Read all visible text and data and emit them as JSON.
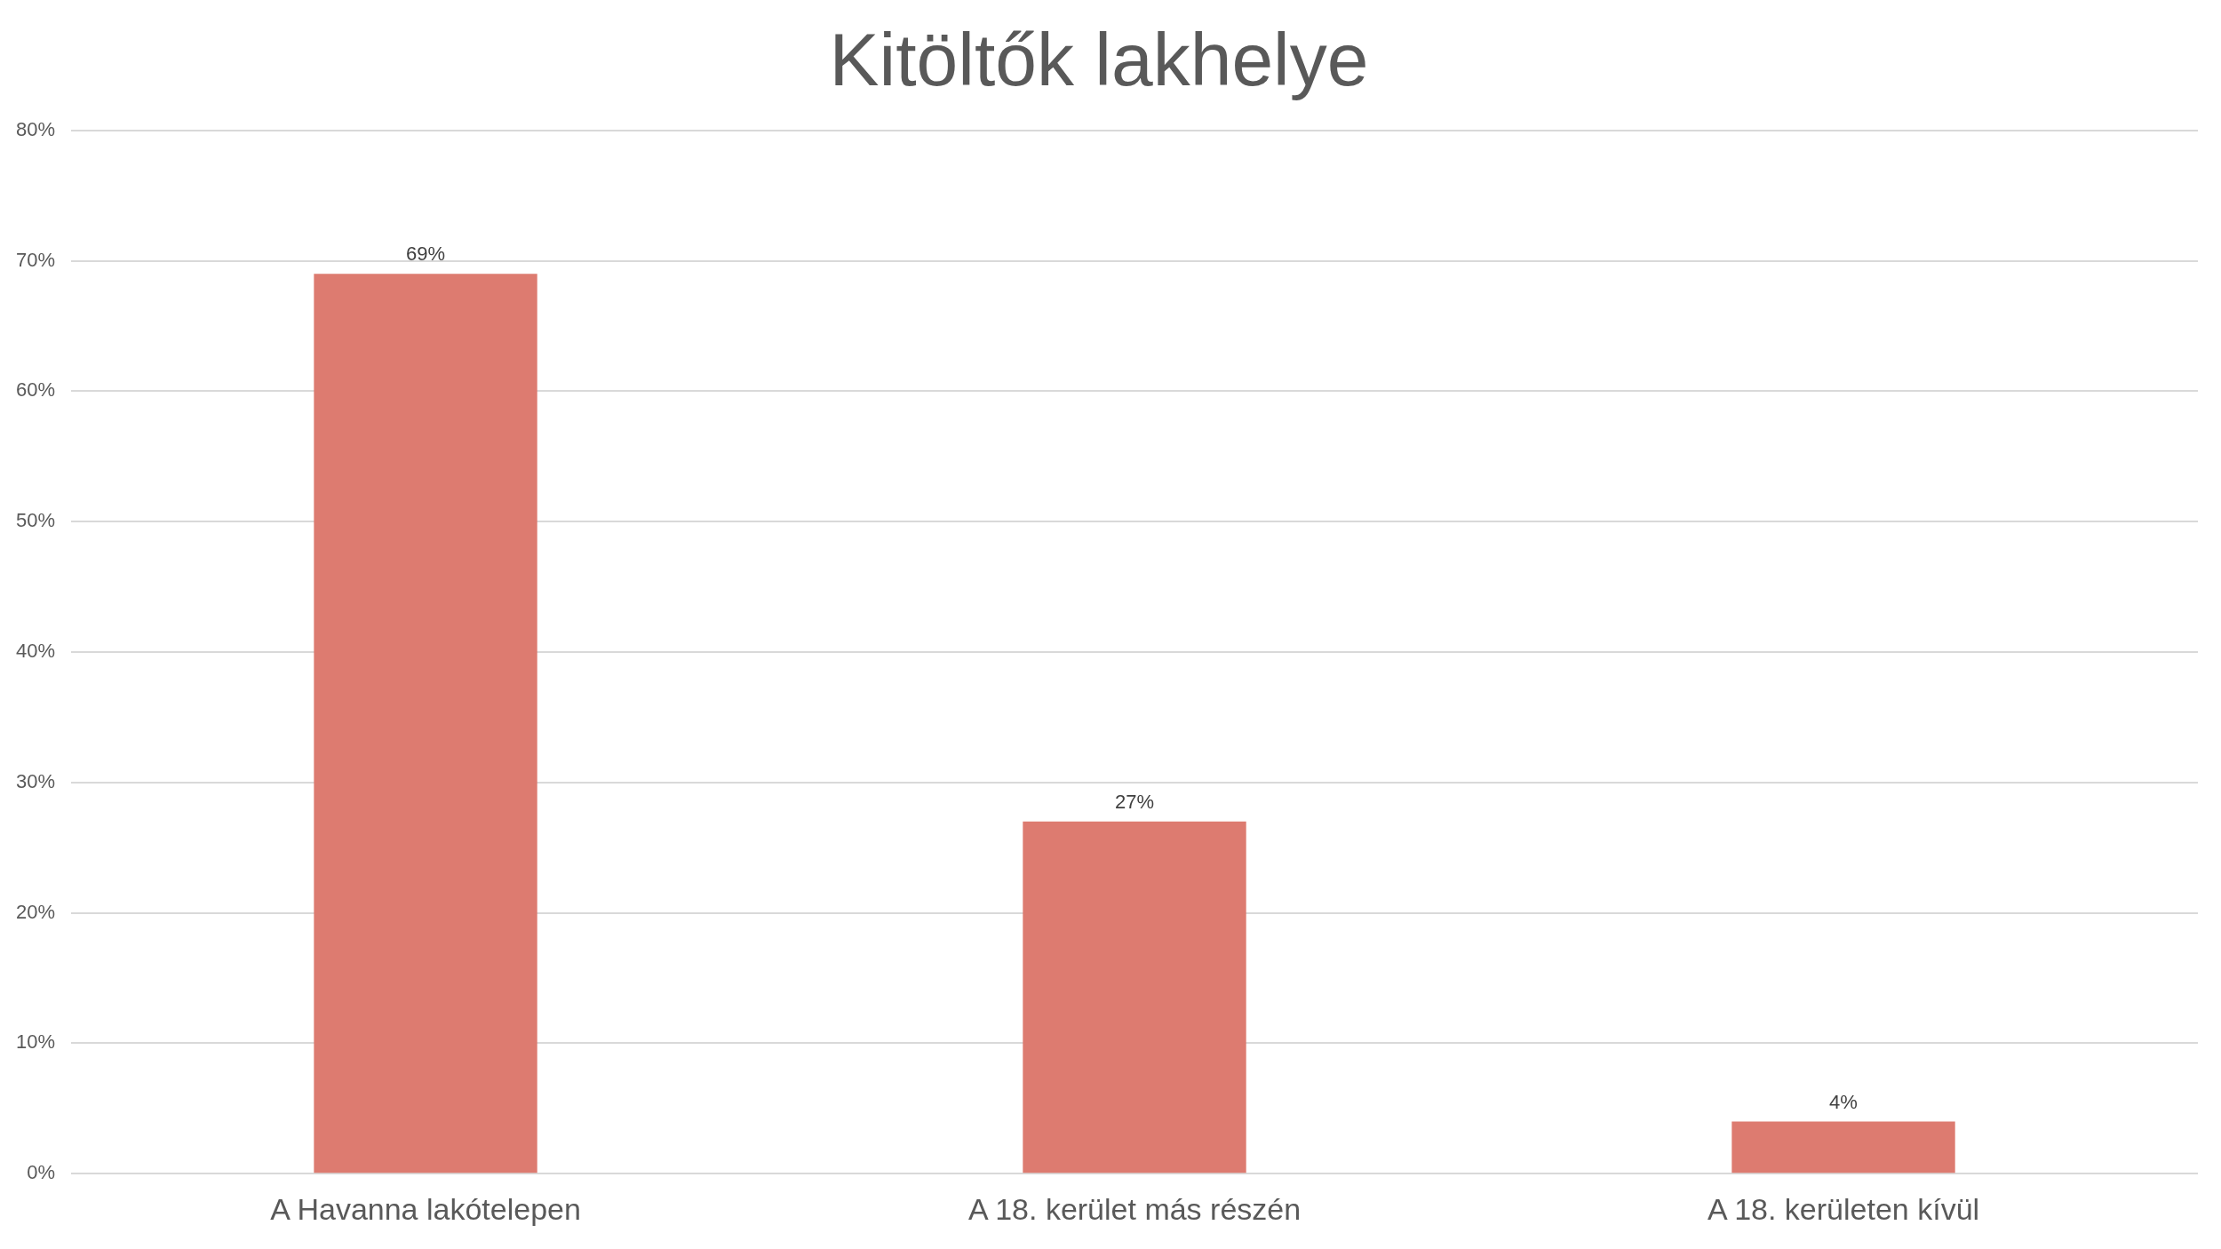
{
  "chart_data": {
    "type": "bar",
    "title": "Kitöltők lakhelye",
    "categories": [
      "A Havanna lakótelepen",
      "A 18. kerület más részén",
      "A 18. kerületen kívül"
    ],
    "values": [
      69,
      27,
      4
    ],
    "value_labels": [
      "69%",
      "27%",
      "4%"
    ],
    "color": "#dd7b70",
    "ylim": [
      0,
      80
    ],
    "yticks": [
      {
        "value": 0,
        "label": "0%"
      },
      {
        "value": 10,
        "label": "10%"
      },
      {
        "value": 20,
        "label": "20%"
      },
      {
        "value": 30,
        "label": "30%"
      },
      {
        "value": 40,
        "label": "40%"
      },
      {
        "value": 50,
        "label": "50%"
      },
      {
        "value": 60,
        "label": "60%"
      },
      {
        "value": 70,
        "label": "70%"
      },
      {
        "value": 80,
        "label": "80%"
      }
    ],
    "grid": "y",
    "legend": false
  }
}
